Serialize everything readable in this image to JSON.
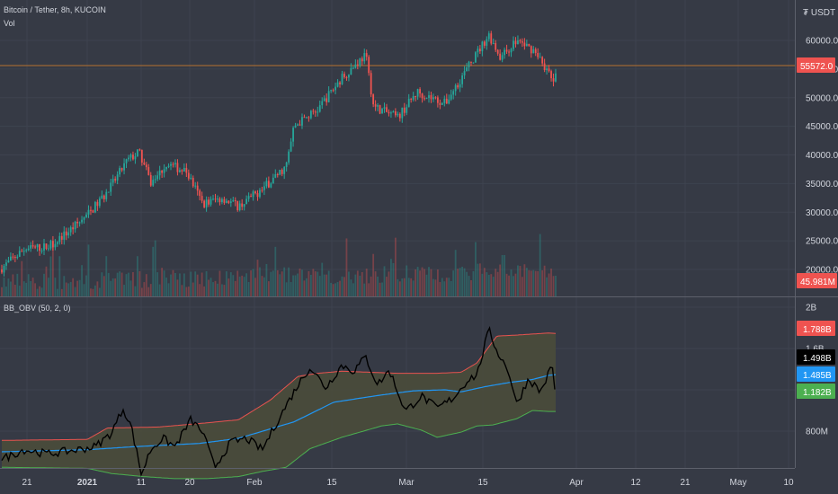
{
  "header": {
    "symbol_line": "Bitcoin / Tether, 8h, KUCOIN",
    "volume_label": "Vol",
    "currency": "₮ USDT"
  },
  "indicator": {
    "label": "BB_OBV (50, 2, 0)"
  },
  "colors": {
    "background": "#363a45",
    "grid": "#3e434f",
    "up": "#26a69a",
    "down": "#ef5350",
    "upper_band": "#e8534f",
    "lower_band": "#4caf50",
    "basis": "#2196f3",
    "obv_line": "#000000",
    "band_fill": "#4a4d3a",
    "text": "#d1d4dc",
    "last_price_line": "#b5712e"
  },
  "chart_data": [
    {
      "type": "candlestick",
      "panel": "price",
      "title": "Bitcoin / Tether, 8h, KUCOIN",
      "ylabel": "",
      "ylim": [
        18000,
        63500
      ],
      "yticks": [
        "60000.0",
        "55000.0",
        "50000.0",
        "45000.0",
        "40000.0",
        "35000.0",
        "30000.0",
        "25000.0",
        "20000.0"
      ],
      "xticks": [
        "21",
        "2021",
        "11",
        "20",
        "Feb",
        "15",
        "Mar",
        "15",
        "Apr",
        "12",
        "21",
        "May",
        "10"
      ],
      "last_price": "55572.0",
      "path_anchors": [
        [
          0,
          20000
        ],
        [
          0.03,
          23500
        ],
        [
          0.06,
          24000
        ],
        [
          0.085,
          26500
        ],
        [
          0.11,
          29500
        ],
        [
          0.135,
          33500
        ],
        [
          0.16,
          39000
        ],
        [
          0.175,
          40500
        ],
        [
          0.19,
          35000
        ],
        [
          0.21,
          38500
        ],
        [
          0.235,
          37000
        ],
        [
          0.255,
          31500
        ],
        [
          0.28,
          32500
        ],
        [
          0.3,
          31000
        ],
        [
          0.33,
          34000
        ],
        [
          0.36,
          38000
        ],
        [
          0.37,
          45000
        ],
        [
          0.4,
          48000
        ],
        [
          0.43,
          53500
        ],
        [
          0.46,
          57500
        ],
        [
          0.47,
          48500
        ],
        [
          0.5,
          46500
        ],
        [
          0.525,
          51000
        ],
        [
          0.56,
          49000
        ],
        [
          0.585,
          54500
        ],
        [
          0.615,
          61000
        ],
        [
          0.63,
          57000
        ],
        [
          0.65,
          60000
        ],
        [
          0.675,
          58000
        ],
        [
          0.695,
          53000
        ],
        [
          0.715,
          55500
        ]
      ]
    },
    {
      "type": "bar",
      "panel": "volume",
      "title": "Vol",
      "current_value": "45.981M"
    },
    {
      "type": "line",
      "panel": "indicator",
      "title": "BB_OBV (50, 2, 0)",
      "ylim": [
        0.45,
        2.05
      ],
      "yticks": [
        "2B",
        "1.6B",
        "800M"
      ],
      "series": [
        {
          "value_label": "1.788B",
          "anchors": [
            [
              0,
              0.71
            ],
            [
              0.11,
              0.72
            ],
            [
              0.135,
              0.83
            ],
            [
              0.2,
              0.84
            ],
            [
              0.26,
              0.88
            ],
            [
              0.3,
              0.91
            ],
            [
              0.34,
              1.1
            ],
            [
              0.375,
              1.33
            ],
            [
              0.4,
              1.36
            ],
            [
              0.43,
              1.38
            ],
            [
              0.5,
              1.36
            ],
            [
              0.55,
              1.36
            ],
            [
              0.58,
              1.37
            ],
            [
              0.6,
              1.46
            ],
            [
              0.625,
              1.72
            ],
            [
              0.65,
              1.73
            ],
            [
              0.69,
              1.75
            ],
            [
              0.715,
              1.74
            ]
          ]
        },
        {
          "value_label": "1.485B",
          "anchors": [
            [
              0,
              0.6
            ],
            [
              0.11,
              0.62
            ],
            [
              0.17,
              0.65
            ],
            [
              0.25,
              0.68
            ],
            [
              0.3,
              0.73
            ],
            [
              0.37,
              0.89
            ],
            [
              0.42,
              1.08
            ],
            [
              0.48,
              1.15
            ],
            [
              0.52,
              1.19
            ],
            [
              0.56,
              1.2
            ],
            [
              0.58,
              1.18
            ],
            [
              0.61,
              1.23
            ],
            [
              0.64,
              1.27
            ],
            [
              0.67,
              1.3
            ],
            [
              0.69,
              1.34
            ],
            [
              0.715,
              1.36
            ]
          ]
        },
        {
          "value_label": "1.182B",
          "anchors": [
            [
              0,
              0.45
            ],
            [
              0.11,
              0.44
            ],
            [
              0.14,
              0.39
            ],
            [
              0.18,
              0.36
            ],
            [
              0.22,
              0.34
            ],
            [
              0.26,
              0.34
            ],
            [
              0.3,
              0.36
            ],
            [
              0.33,
              0.41
            ],
            [
              0.36,
              0.45
            ],
            [
              0.39,
              0.63
            ],
            [
              0.43,
              0.74
            ],
            [
              0.48,
              0.85
            ],
            [
              0.5,
              0.87
            ],
            [
              0.53,
              0.81
            ],
            [
              0.55,
              0.74
            ],
            [
              0.58,
              0.79
            ],
            [
              0.6,
              0.85
            ],
            [
              0.62,
              0.86
            ],
            [
              0.65,
              0.92
            ],
            [
              0.67,
              1.0
            ],
            [
              0.69,
              0.99
            ],
            [
              0.715,
              0.99
            ]
          ]
        },
        {
          "value_label": "1.498B",
          "anchors": [
            [
              0,
              0.52
            ],
            [
              0.03,
              0.62
            ],
            [
              0.06,
              0.58
            ],
            [
              0.09,
              0.61
            ],
            [
              0.12,
              0.65
            ],
            [
              0.14,
              0.78
            ],
            [
              0.155,
              1.02
            ],
            [
              0.165,
              0.85
            ],
            [
              0.178,
              0.38
            ],
            [
              0.19,
              0.63
            ],
            [
              0.205,
              0.73
            ],
            [
              0.22,
              0.65
            ],
            [
              0.24,
              0.91
            ],
            [
              0.255,
              0.79
            ],
            [
              0.27,
              0.45
            ],
            [
              0.29,
              0.69
            ],
            [
              0.31,
              0.73
            ],
            [
              0.33,
              0.62
            ],
            [
              0.35,
              0.91
            ],
            [
              0.375,
              1.25
            ],
            [
              0.39,
              1.42
            ],
            [
              0.41,
              1.22
            ],
            [
              0.43,
              1.44
            ],
            [
              0.445,
              1.38
            ],
            [
              0.46,
              1.52
            ],
            [
              0.475,
              1.25
            ],
            [
              0.49,
              1.39
            ],
            [
              0.51,
              0.99
            ],
            [
              0.53,
              1.14
            ],
            [
              0.55,
              1.02
            ],
            [
              0.57,
              1.12
            ],
            [
              0.59,
              1.31
            ],
            [
              0.6,
              1.34
            ],
            [
              0.615,
              1.78
            ],
            [
              0.625,
              1.58
            ],
            [
              0.64,
              1.38
            ],
            [
              0.65,
              1.06
            ],
            [
              0.665,
              1.31
            ],
            [
              0.68,
              1.18
            ],
            [
              0.695,
              1.44
            ],
            [
              0.7,
              1.01
            ],
            [
              0.71,
              1.38
            ],
            [
              0.715,
              1.36
            ]
          ]
        }
      ]
    }
  ]
}
